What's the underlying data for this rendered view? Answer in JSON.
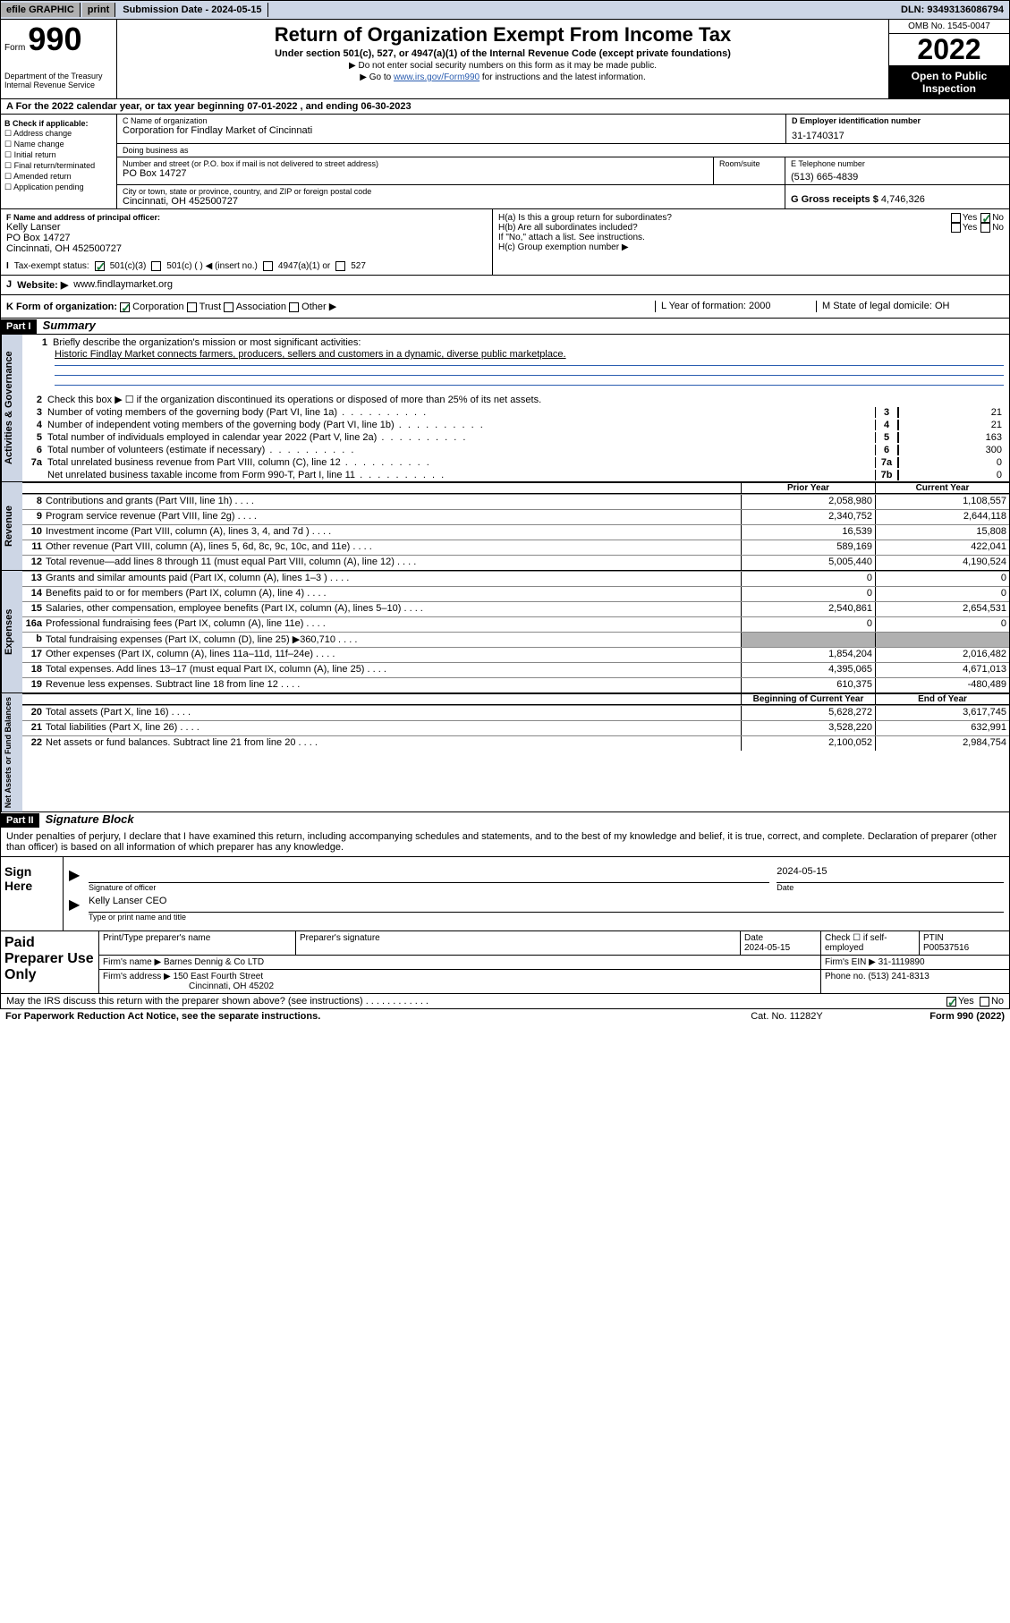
{
  "colors": {
    "topbar_bg": "#cdd6e5",
    "sidebar_bg": "#cdd6e5",
    "shade_bg": "#b0b0b0",
    "check_color": "#1a7a3a",
    "link_color": "#2a5db0"
  },
  "topbar": {
    "efile": "efile GRAPHIC",
    "print": "print",
    "submission": "Submission Date - 2024-05-15",
    "dln": "DLN: 93493136086794"
  },
  "header": {
    "form_word": "Form",
    "form_num": "990",
    "dept": "Department of the Treasury",
    "irs": "Internal Revenue Service",
    "title": "Return of Organization Exempt From Income Tax",
    "sub1": "Under section 501(c), 527, or 4947(a)(1) of the Internal Revenue Code (except private foundations)",
    "sub2": "Do not enter social security numbers on this form as it may be made public.",
    "sub3_pre": "▶ Go to ",
    "sub3_link": "www.irs.gov/Form990",
    "sub3_post": " for instructions and the latest information.",
    "omb": "OMB No. 1545-0047",
    "year": "2022",
    "inspect": "Open to Public Inspection"
  },
  "rowA": "A For the 2022 calendar year, or tax year beginning 07-01-2022   , and ending 06-30-2023",
  "boxB": {
    "head": "B Check if applicable:",
    "items": [
      "☐ Address change",
      "☐ Name change",
      "☐ Initial return",
      "☐ Final return/terminated",
      "☐ Amended return",
      "☐ Application pending"
    ]
  },
  "boxC": {
    "name_lbl": "C Name of organization",
    "name": "Corporation for Findlay Market of Cincinnati",
    "dba_lbl": "Doing business as",
    "dba": "",
    "street_lbl": "Number and street (or P.O. box if mail is not delivered to street address)",
    "street": "PO Box 14727",
    "room_lbl": "Room/suite",
    "city_lbl": "City or town, state or province, country, and ZIP or foreign postal code",
    "city": "Cincinnati, OH  452500727"
  },
  "boxD": {
    "lbl": "D Employer identification number",
    "val": "31-1740317"
  },
  "boxE": {
    "lbl": "E Telephone number",
    "val": "(513) 665-4839"
  },
  "boxG": {
    "lbl": "G Gross receipts $",
    "val": "4,746,326"
  },
  "boxF": {
    "lbl": "F Name and address of principal officer:",
    "name": "Kelly Lanser",
    "addr1": "PO Box 14727",
    "addr2": "Cincinnati, OH  452500727"
  },
  "boxH": {
    "ha": "H(a)  Is this a group return for subordinates?",
    "ha_yes": "Yes",
    "ha_no": "No",
    "hb": "H(b)  Are all subordinates included?",
    "hb_yes": "Yes",
    "hb_no": "No",
    "hb_note": "If \"No,\" attach a list. See instructions.",
    "hc": "H(c)  Group exemption number ▶"
  },
  "rowI": {
    "lbl_i": "I",
    "lbl": "Tax-exempt status:",
    "o1": "501(c)(3)",
    "o2": "501(c) (  ) ◀ (insert no.)",
    "o3": "4947(a)(1) or",
    "o4": "527"
  },
  "rowJ": {
    "lbl": "J",
    "txt": "Website: ▶",
    "url": "www.findlaymarket.org"
  },
  "rowK": {
    "k": "K Form of organization:",
    "o1": "Corporation",
    "o2": "Trust",
    "o3": "Association",
    "o4": "Other ▶",
    "l": "L Year of formation: 2000",
    "m": "M State of legal domicile: OH"
  },
  "part1": {
    "hdr": "Part I",
    "title": "Summary"
  },
  "gov": {
    "side": "Activities & Governance",
    "l1": "Briefly describe the organization's mission or most significant activities:",
    "l1_txt": "Historic Findlay Market connects farmers, producers, sellers and customers in a dynamic, diverse public marketplace.",
    "l2": "Check this box ▶ ☐  if the organization discontinued its operations or disposed of more than 25% of its net assets.",
    "l3": "Number of voting members of the governing body (Part VI, line 1a)",
    "l4": "Number of independent voting members of the governing body (Part VI, line 1b)",
    "l5": "Total number of individuals employed in calendar year 2022 (Part V, line 2a)",
    "l6": "Total number of volunteers (estimate if necessary)",
    "l7a": "Total unrelated business revenue from Part VIII, column (C), line 12",
    "l7b": "Net unrelated business taxable income from Form 990-T, Part I, line 11",
    "v3": "21",
    "v4": "21",
    "v5": "163",
    "v6": "300",
    "v7a": "0",
    "v7b": "0"
  },
  "tblhdr": {
    "prior": "Prior Year",
    "current": "Current Year"
  },
  "rev": {
    "side": "Revenue",
    "rows": [
      {
        "n": "8",
        "d": "Contributions and grants (Part VIII, line 1h)",
        "p": "2,058,980",
        "c": "1,108,557"
      },
      {
        "n": "9",
        "d": "Program service revenue (Part VIII, line 2g)",
        "p": "2,340,752",
        "c": "2,644,118"
      },
      {
        "n": "10",
        "d": "Investment income (Part VIII, column (A), lines 3, 4, and 7d )",
        "p": "16,539",
        "c": "15,808"
      },
      {
        "n": "11",
        "d": "Other revenue (Part VIII, column (A), lines 5, 6d, 8c, 9c, 10c, and 11e)",
        "p": "589,169",
        "c": "422,041"
      },
      {
        "n": "12",
        "d": "Total revenue—add lines 8 through 11 (must equal Part VIII, column (A), line 12)",
        "p": "5,005,440",
        "c": "4,190,524"
      }
    ]
  },
  "exp": {
    "side": "Expenses",
    "rows": [
      {
        "n": "13",
        "d": "Grants and similar amounts paid (Part IX, column (A), lines 1–3 )",
        "p": "0",
        "c": "0"
      },
      {
        "n": "14",
        "d": "Benefits paid to or for members (Part IX, column (A), line 4)",
        "p": "0",
        "c": "0"
      },
      {
        "n": "15",
        "d": "Salaries, other compensation, employee benefits (Part IX, column (A), lines 5–10)",
        "p": "2,540,861",
        "c": "2,654,531"
      },
      {
        "n": "16a",
        "d": "Professional fundraising fees (Part IX, column (A), line 11e)",
        "p": "0",
        "c": "0"
      },
      {
        "n": "b",
        "d": "Total fundraising expenses (Part IX, column (D), line 25) ▶360,710",
        "p": "",
        "c": "",
        "shade": true
      },
      {
        "n": "17",
        "d": "Other expenses (Part IX, column (A), lines 11a–11d, 11f–24e)",
        "p": "1,854,204",
        "c": "2,016,482"
      },
      {
        "n": "18",
        "d": "Total expenses. Add lines 13–17 (must equal Part IX, column (A), line 25)",
        "p": "4,395,065",
        "c": "4,671,013"
      },
      {
        "n": "19",
        "d": "Revenue less expenses. Subtract line 18 from line 12",
        "p": "610,375",
        "c": "-480,489"
      }
    ]
  },
  "net": {
    "side": "Net Assets or Fund Balances",
    "hdr_p": "Beginning of Current Year",
    "hdr_c": "End of Year",
    "rows": [
      {
        "n": "20",
        "d": "Total assets (Part X, line 16)",
        "p": "5,628,272",
        "c": "3,617,745"
      },
      {
        "n": "21",
        "d": "Total liabilities (Part X, line 26)",
        "p": "3,528,220",
        "c": "632,991"
      },
      {
        "n": "22",
        "d": "Net assets or fund balances. Subtract line 21 from line 20",
        "p": "2,100,052",
        "c": "2,984,754"
      }
    ]
  },
  "part2": {
    "hdr": "Part II",
    "title": "Signature Block"
  },
  "sig": {
    "intro": "Under penalties of perjury, I declare that I have examined this return, including accompanying schedules and statements, and to the best of my knowledge and belief, it is true, correct, and complete. Declaration of preparer (other than officer) is based on all information of which preparer has any knowledge.",
    "here": "Sign Here",
    "officer_lbl": "Signature of officer",
    "date_lbl": "Date",
    "date": "2024-05-15",
    "name": "Kelly Lanser CEO",
    "name_lbl": "Type or print name and title"
  },
  "prep": {
    "title": "Paid Preparer Use Only",
    "r1": {
      "c1": "Print/Type preparer's name",
      "c2": "Preparer's signature",
      "c3l": "Date",
      "c3": "2024-05-15",
      "c4": "Check ☐ if self-employed",
      "c5l": "PTIN",
      "c5": "P00537516"
    },
    "r2": {
      "lbl": "Firm's name   ▶",
      "val": "Barnes Dennig & Co LTD",
      "rlbl": "Firm's EIN ▶",
      "rval": "31-1119890"
    },
    "r3": {
      "lbl": "Firm's address ▶",
      "a1": "150 East Fourth Street",
      "a2": "Cincinnati, OH  45202",
      "rlbl": "Phone no.",
      "rval": "(513) 241-8313"
    }
  },
  "footer": {
    "q": "May the IRS discuss this return with the preparer shown above? (see instructions)",
    "yes": "Yes",
    "no": "No",
    "pra": "For Paperwork Reduction Act Notice, see the separate instructions.",
    "cat": "Cat. No. 11282Y",
    "form": "Form 990 (2022)"
  }
}
